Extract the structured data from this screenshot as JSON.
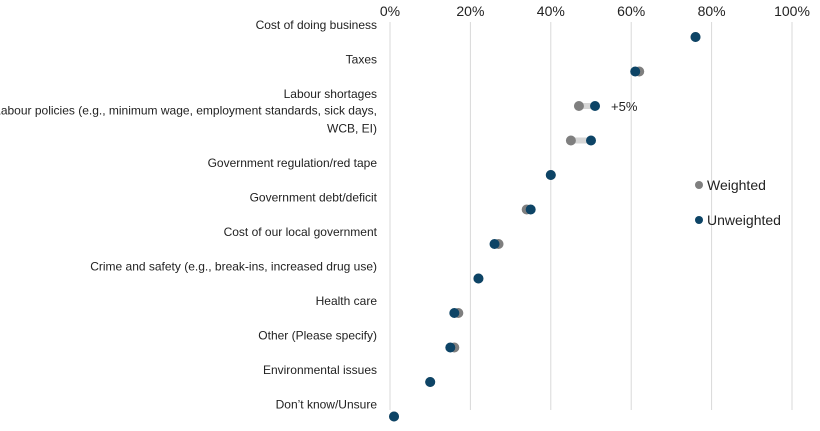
{
  "chart_data": {
    "type": "dot",
    "xlim": [
      0,
      100
    ],
    "x_ticks": [
      "0%",
      "20%",
      "40%",
      "60%",
      "80%",
      "100%"
    ],
    "tick_values": [
      0,
      20,
      40,
      60,
      80,
      100
    ],
    "grid": "vertical",
    "legend_position": "right",
    "categories": [
      [
        "Cost of doing business"
      ],
      [
        "Taxes"
      ],
      [
        "Labour shortages"
      ],
      [
        "Labour policies (e.g., minimum wage, employment standards, sick days,",
        "WCB, EI)"
      ],
      [
        "Government regulation/red tape"
      ],
      [
        "Government debt/deficit"
      ],
      [
        "Cost of our local government"
      ],
      [
        "Crime and safety (e.g., break-ins, increased drug use)"
      ],
      [
        "Health care"
      ],
      [
        "Other (Please specify)"
      ],
      [
        "Environmental issues"
      ],
      [
        "Don’t know/Unsure"
      ]
    ],
    "series": [
      {
        "name": "Weighted",
        "color": "#7f7f7f",
        "values": [
          76,
          62,
          47,
          45,
          40,
          34,
          27,
          22,
          17,
          16,
          10,
          1
        ]
      },
      {
        "name": "Unweighted",
        "color": "#0d4466",
        "values": [
          76,
          61,
          51,
          50,
          40,
          35,
          26,
          22,
          16,
          15,
          10,
          1
        ]
      }
    ],
    "annotations": [
      {
        "category_index": 2,
        "text": "+5%"
      }
    ]
  }
}
